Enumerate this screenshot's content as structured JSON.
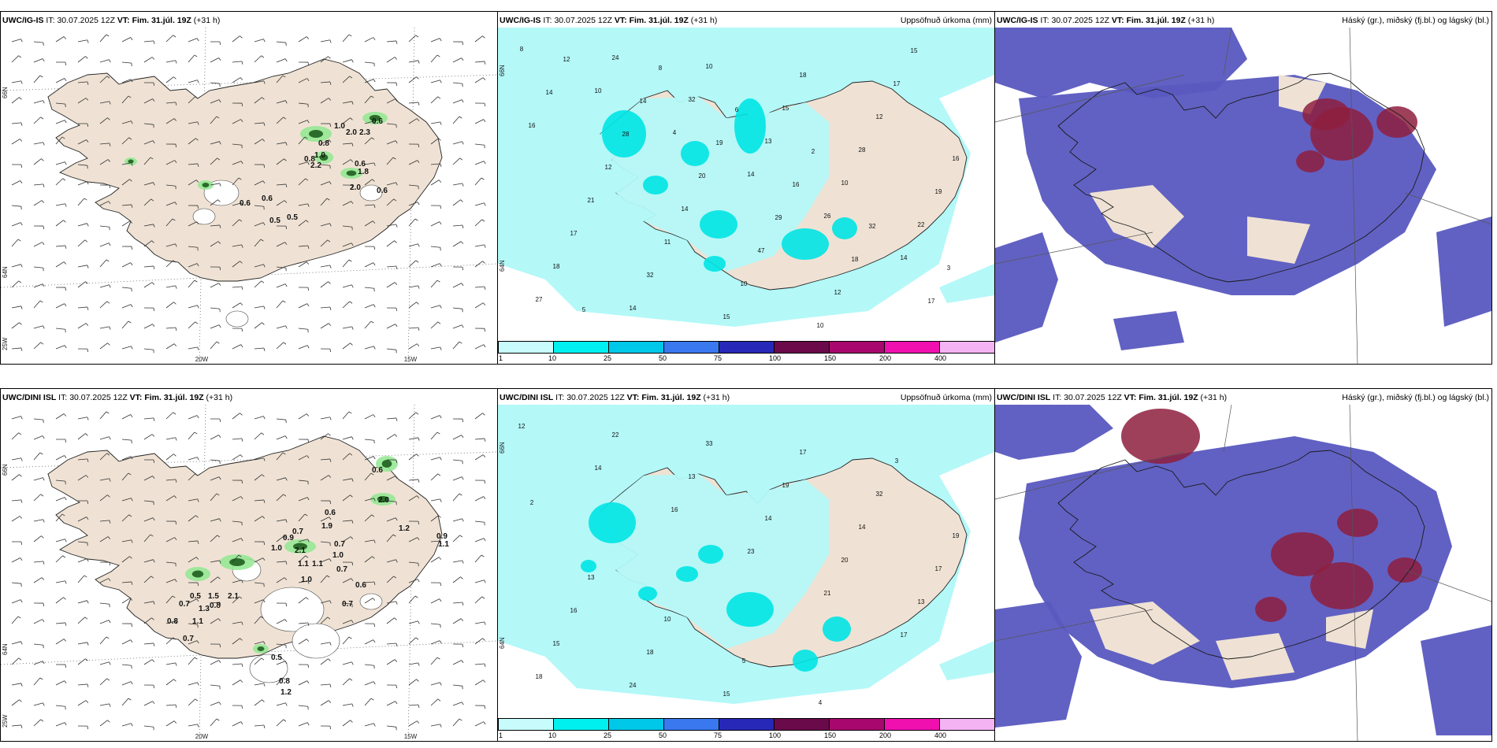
{
  "colors": {
    "land": "#efe2d4",
    "sea_precip": "#b4f8f8",
    "precip_mid": "#00e4e4",
    "cloud_low": "#5858c0",
    "cloud_high": "#8e1e3e",
    "wind_green": "#90e890",
    "wind_dark": "#1e5e1e"
  },
  "colorbar": {
    "ticks": [
      "1",
      "10",
      "25",
      "50",
      "75",
      "100",
      "150",
      "200",
      "400"
    ],
    "colors": [
      "#c8fcfc",
      "#00f0f0",
      "#00c8e8",
      "#3a78f0",
      "#2828b8",
      "#6a0a4a",
      "#a8086e",
      "#f010b0",
      "#f4b4f4"
    ]
  },
  "rows": [
    {
      "model": "UWC/IG-IS",
      "it_label": "IT:",
      "it_value": "30.07.2025 12Z",
      "vt_label": "VT:",
      "vt_value": "Fim. 31.júl. 19Z",
      "lead": "(+31 h)",
      "precip_label": "Uppsöfnuð úrkoma (mm)",
      "cloud_label": "Háský (gr.), miðský (fj.bl.) og lágský (bl.)",
      "lat_labels": [
        "66N",
        "64N",
        "25W"
      ],
      "lon_labels": [
        "20W",
        "15W"
      ],
      "precip_lat_labels": [
        "66N",
        "64N"
      ],
      "gust_values": [
        "1.0",
        "0.6",
        "2.0",
        "2.3",
        "0.8",
        "1.0",
        "0.8",
        "2.2",
        "0.6",
        "1.8",
        "2.0",
        "0.6",
        "0.6",
        "0.6",
        "0.5",
        "0.5"
      ],
      "precip_values": [
        "8",
        "10",
        "4",
        "14",
        "26",
        "14",
        "27",
        "24",
        "32",
        "13",
        "10",
        "22",
        "18",
        "14",
        "10",
        "15",
        "28",
        "19",
        "17",
        "32",
        "15",
        "18",
        "12",
        "16",
        "21",
        "11",
        "10",
        "10",
        "17",
        "16",
        "12",
        "14",
        "47",
        "12",
        "15",
        "14",
        "28",
        "20",
        "29",
        "18",
        "17",
        "12",
        "14",
        "19",
        "16",
        "32",
        "3",
        "5",
        "8",
        "6",
        "2"
      ]
    },
    {
      "model": "UWC/DINI ISL",
      "it_label": "IT:",
      "it_value": "30.07.2025 12Z",
      "vt_label": "VT:",
      "vt_value": "Fim. 31.júl. 19Z",
      "lead": "(+31 h)",
      "precip_label": "Uppsöfnuð úrkoma (mm)",
      "cloud_label": "Háský (gr.), miðský (fj.bl.) og lágský (bl.)",
      "lat_labels": [
        "66N",
        "64N",
        "25W"
      ],
      "lon_labels": [
        "20W",
        "15W"
      ],
      "precip_lat_labels": [
        "66N",
        "64N"
      ],
      "gust_values": [
        "0.6",
        "2.0",
        "0.6",
        "1.9",
        "0.7",
        "0.9",
        "1.0",
        "2.1",
        "1.1",
        "0.7",
        "1.0",
        "0.7",
        "1.1",
        "1.0",
        "0.6",
        "0.7",
        "1.2",
        "0.9",
        "1.1",
        "0.5",
        "1.5",
        "0.7",
        "0.8",
        "2.1",
        "1.3",
        "0.8",
        "1.1",
        "0.7",
        "0.5",
        "0.8",
        "1.2"
      ],
      "precip_values": [
        "12",
        "14",
        "16",
        "23",
        "21",
        "17",
        "18",
        "22",
        "13",
        "14",
        "20",
        "13",
        "15",
        "24",
        "33",
        "19",
        "14",
        "17",
        "16",
        "18",
        "15",
        "17",
        "32",
        "19",
        "13",
        "10",
        "5",
        "4",
        "3",
        "2"
      ]
    }
  ]
}
